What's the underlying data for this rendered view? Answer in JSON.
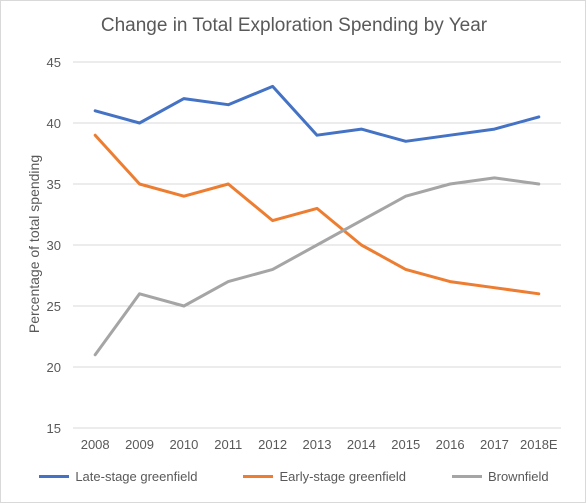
{
  "chart_data": {
    "type": "line",
    "title": "Change in Total Exploration Spending  by Year",
    "xlabel": "",
    "ylabel": "Percentage of total spending",
    "categories": [
      "2008",
      "2009",
      "2010",
      "2011",
      "2012",
      "2013",
      "2014",
      "2015",
      "2016",
      "2017",
      "2018E"
    ],
    "ylim": [
      15,
      45
    ],
    "yticks": [
      "15",
      "20",
      "25",
      "30",
      "35",
      "40",
      "45"
    ],
    "grid": true,
    "legend_position": "bottom",
    "series": [
      {
        "name": "Late-stage greenfield",
        "color": "#4472c4",
        "values": [
          41,
          40,
          42,
          41.5,
          43,
          39,
          39.5,
          38.5,
          39,
          39.5,
          40.5
        ]
      },
      {
        "name": "Early-stage greenfield",
        "color": "#ed7d31",
        "values": [
          39,
          35,
          34,
          35,
          32,
          33,
          30,
          28,
          27,
          26.5,
          26
        ]
      },
      {
        "name": "Brownfield",
        "color": "#a5a5a5",
        "values": [
          21,
          26,
          25,
          27,
          28,
          30,
          32,
          34,
          35,
          35.5,
          35
        ]
      }
    ]
  }
}
